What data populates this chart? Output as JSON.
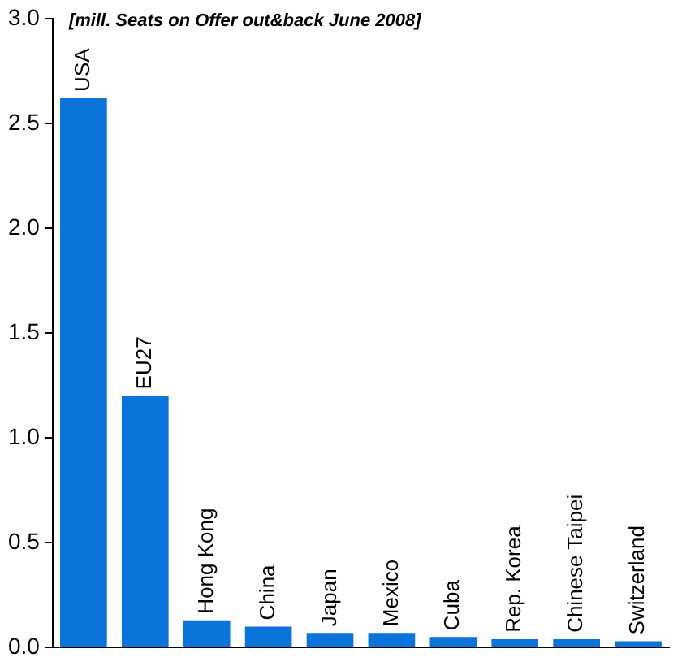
{
  "chart_data": {
    "type": "bar",
    "title": "[mill. Seats on Offer out&back June 2008]",
    "categories": [
      "USA",
      "EU27",
      "Hong Kong",
      "China",
      "Japan",
      "Mexico",
      "Cuba",
      "Rep. Korea",
      "Chinese Taipei",
      "Switzerland"
    ],
    "values": [
      2.62,
      1.2,
      0.13,
      0.1,
      0.07,
      0.07,
      0.05,
      0.04,
      0.04,
      0.03
    ],
    "color": "#0a74da",
    "ylim": [
      0,
      3
    ],
    "yticks": [
      {
        "value": 0,
        "label": "0.0"
      },
      {
        "value": 0.5,
        "label": "0.5"
      },
      {
        "value": 1,
        "label": "1.0"
      },
      {
        "value": 1.5,
        "label": "1.5"
      },
      {
        "value": 2,
        "label": "2.0"
      },
      {
        "value": 2.5,
        "label": "2.5"
      },
      {
        "value": 3,
        "label": "3.0"
      }
    ],
    "grid": false,
    "legend": false,
    "tick_labels": "y"
  }
}
